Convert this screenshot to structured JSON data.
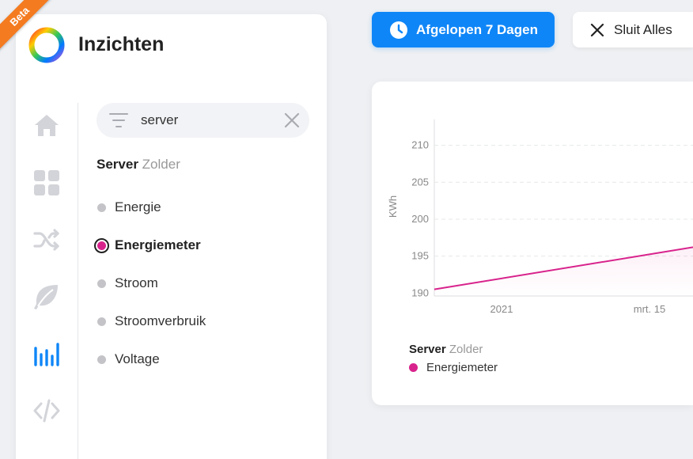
{
  "badge": "Beta",
  "app": {
    "title": "Inzichten"
  },
  "rail": [
    {
      "icon": "home-icon"
    },
    {
      "icon": "dashboard-icon"
    },
    {
      "icon": "flows-shuffle-icon"
    },
    {
      "icon": "energy-leaf-icon"
    },
    {
      "icon": "insights-bars-icon",
      "active": true
    },
    {
      "icon": "code-icon"
    }
  ],
  "search": {
    "value": "server",
    "placeholder": ""
  },
  "device": {
    "name": "Server",
    "zone": "Zolder"
  },
  "capabilities": [
    {
      "label": "Energie",
      "active": false
    },
    {
      "label": "Energiemeter",
      "active": true
    },
    {
      "label": "Stroom",
      "active": false
    },
    {
      "label": "Stroomverbruik",
      "active": false
    },
    {
      "label": "Voltage",
      "active": false
    }
  ],
  "toolbar": {
    "period_label": "Afgelopen 7 Dagen",
    "close_all_label": "Sluit Alles"
  },
  "colors": {
    "accent": "#0f86f7",
    "series": "#d8238c",
    "beta": "#f47b20"
  },
  "chart_data": {
    "type": "line",
    "ylabel": "KWh",
    "ylim": [
      189.6,
      213.5
    ],
    "yticks": [
      190,
      195,
      200,
      205,
      210
    ],
    "xticks": [
      "2021",
      "mrt. 15"
    ],
    "grid": true,
    "legend": {
      "device": "Server",
      "zone": "Zolder",
      "placement": "bottom-left"
    },
    "series": [
      {
        "name": "Energiemeter",
        "color": "#d8238c",
        "values": [
          190.5,
          196.2
        ]
      }
    ]
  }
}
